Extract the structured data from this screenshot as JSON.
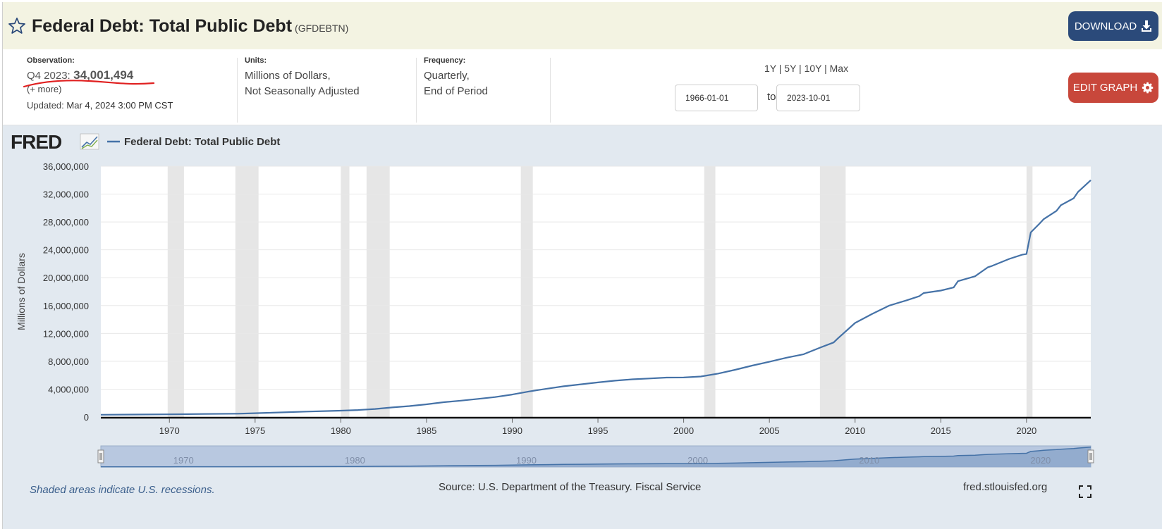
{
  "header": {
    "title": "Federal Debt: Total Public Debt",
    "series_id": "(GFDEBTN)",
    "download_label": "DOWNLOAD"
  },
  "observation": {
    "head": "Observation:",
    "date": "Q4 2023:",
    "value": "34,001,494",
    "more": "(+ more)",
    "updated_label": "Updated:",
    "updated_value": "Mar 4, 2024 3:00 PM CST"
  },
  "units": {
    "head": "Units:",
    "line1": "Millions of Dollars,",
    "line2": "Not Seasonally Adjusted"
  },
  "frequency": {
    "head": "Frequency:",
    "line1": "Quarterly,",
    "line2": "End of Period"
  },
  "range": {
    "links": "1Y | 5Y | 10Y | Max",
    "start": "1966-01-01",
    "to_label": "to",
    "end": "2023-10-01"
  },
  "edit_graph_label": "EDIT GRAPH",
  "graph": {
    "logo_text": "FRED",
    "legend": "Federal Debt: Total Public Debt",
    "navigator_labels": [
      "1970",
      "1980",
      "1990",
      "2000",
      "2010",
      "2020"
    ]
  },
  "footer": {
    "note": "Shaded areas indicate U.S. recessions.",
    "source": "Source: U.S. Department of the Treasury. Fiscal Service",
    "url": "fred.stlouisfed.org"
  },
  "colors": {
    "series": "#4572a7",
    "recession": "#e6e6e6",
    "download_bg": "#2b4a7a",
    "edit_bg": "#c8473b",
    "header_bg": "#f3f3e2",
    "graph_bg": "#e2e9f0"
  },
  "chart_data": {
    "type": "line",
    "title": "",
    "xlabel": "",
    "ylabel": "Millions of Dollars",
    "xlim": [
      1966.0,
      2023.75
    ],
    "ylim": [
      0,
      36000000
    ],
    "yticks": [
      0,
      4000000,
      8000000,
      12000000,
      16000000,
      20000000,
      24000000,
      28000000,
      32000000,
      36000000
    ],
    "ytick_labels": [
      "0",
      "4,000,000",
      "8,000,000",
      "12,000,000",
      "16,000,000",
      "20,000,000",
      "24,000,000",
      "28,000,000",
      "32,000,000",
      "36,000,000"
    ],
    "xticks": [
      1970,
      1975,
      1980,
      1985,
      1990,
      1995,
      2000,
      2005,
      2010,
      2015,
      2020
    ],
    "xtick_labels": [
      "1970",
      "1975",
      "1980",
      "1985",
      "1990",
      "1995",
      "2000",
      "2005",
      "2010",
      "2015",
      "2020"
    ],
    "grid": true,
    "legend_position": "top-left",
    "recessions": [
      [
        1969.9,
        1970.85
      ],
      [
        1973.85,
        1975.2
      ],
      [
        1980.0,
        1980.5
      ],
      [
        1981.5,
        1982.85
      ],
      [
        1990.5,
        1991.2
      ],
      [
        2001.2,
        2001.85
      ],
      [
        2007.95,
        2009.45
      ],
      [
        2020.0,
        2020.35
      ]
    ],
    "series": [
      {
        "name": "Federal Debt: Total Public Debt",
        "x": [
          1966,
          1968,
          1970,
          1972,
          1974,
          1976,
          1978,
          1980,
          1981,
          1982,
          1983,
          1984,
          1985,
          1986,
          1987,
          1988,
          1989,
          1990,
          1991,
          1992,
          1993,
          1994,
          1995,
          1996,
          1997,
          1998,
          1999,
          2000,
          2001,
          2002,
          2003,
          2004,
          2005,
          2006,
          2007,
          2008,
          2008.75,
          2009,
          2010,
          2011,
          2012,
          2013,
          2013.75,
          2014,
          2015,
          2015.75,
          2016,
          2017,
          2017.75,
          2018,
          2019,
          2019.75,
          2020,
          2020.25,
          2020.75,
          2021,
          2021.75,
          2022,
          2022.75,
          2023,
          2023.75
        ],
        "y": [
          320000,
          350000,
          380000,
          430000,
          480000,
          620000,
          780000,
          910000,
          1000000,
          1150000,
          1380000,
          1570000,
          1820000,
          2120000,
          2350000,
          2600000,
          2860000,
          3230000,
          3670000,
          4060000,
          4410000,
          4690000,
          4970000,
          5220000,
          5410000,
          5530000,
          5660000,
          5670000,
          5810000,
          6230000,
          6780000,
          7380000,
          7930000,
          8510000,
          9010000,
          10000000,
          10700000,
          11300000,
          13500000,
          14800000,
          16000000,
          16750000,
          17350000,
          17800000,
          18150000,
          18600000,
          19500000,
          20200000,
          21500000,
          21700000,
          22700000,
          23300000,
          23400000,
          26500000,
          27750000,
          28400000,
          29600000,
          30400000,
          31400000,
          32300000,
          34001494
        ]
      }
    ]
  }
}
